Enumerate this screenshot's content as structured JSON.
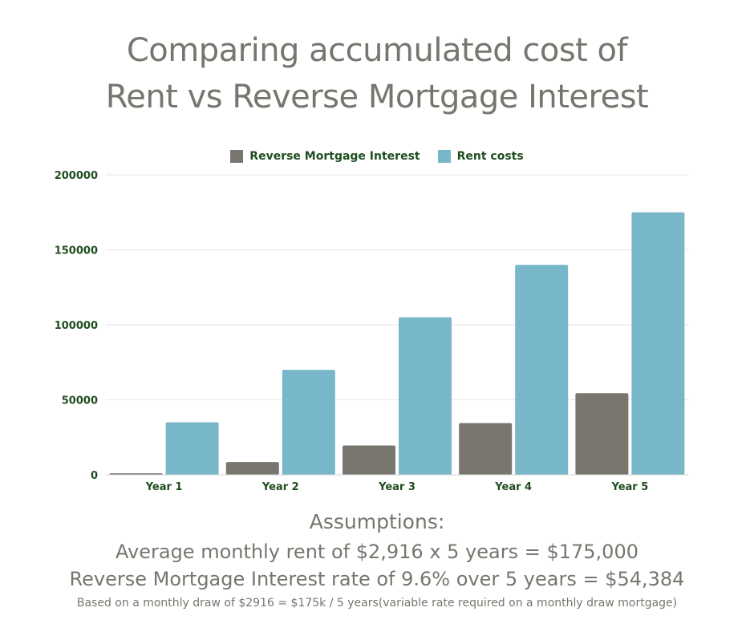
{
  "header": {
    "title_line1": "Comparing accumulated cost of",
    "title_line2": "Rent vs Reverse Mortgage Interest"
  },
  "colors": {
    "reverse_mortgage": "#79766f",
    "rent": "#78b7c9",
    "axis_text": "#1f4d1f",
    "title_text": "#78756e"
  },
  "chart_data": {
    "type": "bar",
    "categories": [
      "Year 1",
      "Year 2",
      "Year 3",
      "Year 4",
      "Year 5"
    ],
    "series": [
      {
        "name": "Reverse Mortgage Interest",
        "values": [
          1000,
          8500,
          19500,
          34500,
          54384
        ]
      },
      {
        "name": "Rent costs",
        "values": [
          35000,
          70000,
          105000,
          140000,
          175000
        ]
      }
    ],
    "yticks": [
      "0",
      "50000",
      "100000",
      "150000",
      "200000"
    ],
    "ylim": [
      0,
      200000
    ],
    "grid": true,
    "legend_position": "top-center"
  },
  "assumptions": {
    "heading": "Assumptions:",
    "line1": "Average monthly rent of $2,916 x 5 years = $175,000",
    "line2": "Reverse Mortgage Interest rate of 9.6% over 5 years = $54,384",
    "line3": "Based on a monthly draw of $2916 = $175k / 5 years(variable rate required on a monthly draw mortgage)"
  }
}
